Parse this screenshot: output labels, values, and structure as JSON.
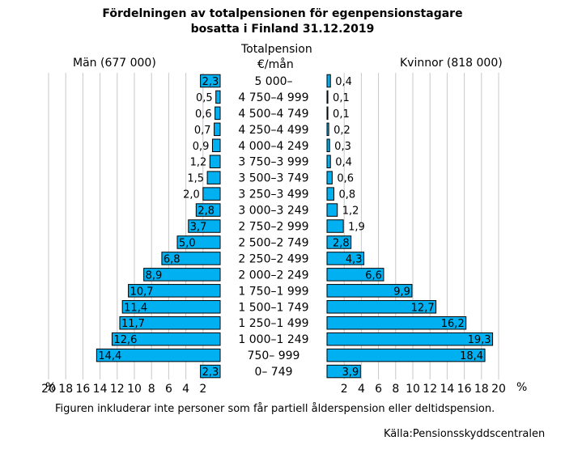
{
  "title_line1": "Fördelningen av totalpensionen för egenpensionstagare",
  "title_line2": "bosatta i Finland  31.12.2019",
  "center_heading_line1": "Totalpension",
  "center_heading_line2": "€/mån",
  "left_heading": "Män (677 000)",
  "right_heading": "Kvinnor (818 000)",
  "footnote": "Figuren inkluderar inte personer som får partiell ålderspension eller deltidspension.",
  "source": "Källa:Pensionsskyddscentralen",
  "percent_sign": "%",
  "bar_color": "#00b0f0",
  "chart_data": {
    "type": "bar",
    "categories": [
      "5 000–",
      "4 750–4 999",
      "4 500–4 749",
      "4 250–4 499",
      "4 000–4 249",
      "3 750–3 999",
      "3 500–3 749",
      "3 250–3 499",
      "3 000–3 249",
      "2 750–2 999",
      "2 500–2 749",
      "2 250–2 499",
      "2 000–2 249",
      "1 750–1 999",
      "1 500–1 749",
      "1 250–1 499",
      "1 000–1 249",
      "750–  999",
      "0–   749"
    ],
    "series": [
      {
        "name": "Män (677 000)",
        "values": [
          2.3,
          0.5,
          0.6,
          0.7,
          0.9,
          1.2,
          1.5,
          2.0,
          2.8,
          3.7,
          5.0,
          6.8,
          8.9,
          10.7,
          11.4,
          11.7,
          12.6,
          14.4,
          2.3
        ],
        "labels": [
          "2,3",
          "0,5",
          "0,6",
          "0,7",
          "0,9",
          "1,2",
          "1,5",
          "2,0",
          "2,8",
          "3,7",
          "5,0",
          "6,8",
          "8,9",
          "10,7",
          "11,4",
          "11,7",
          "12,6",
          "14,4",
          "2,3"
        ]
      },
      {
        "name": "Kvinnor (818 000)",
        "values": [
          0.4,
          0.1,
          0.1,
          0.2,
          0.3,
          0.4,
          0.6,
          0.8,
          1.2,
          1.9,
          2.8,
          4.3,
          6.6,
          9.9,
          12.7,
          16.2,
          19.3,
          18.4,
          3.9
        ],
        "labels": [
          "0,4",
          "0,1",
          "0,1",
          "0,2",
          "0,3",
          "0,4",
          "0,6",
          "0,8",
          "1,2",
          "1,9",
          "2,8",
          "4,3",
          "6,6",
          "9,9",
          "12,7",
          "16,2",
          "19,3",
          "18,4",
          "3,9"
        ]
      }
    ],
    "xlim": [
      0,
      20
    ],
    "ticks": [
      2,
      4,
      6,
      8,
      10,
      12,
      14,
      16,
      18,
      20
    ],
    "grid": true
  }
}
